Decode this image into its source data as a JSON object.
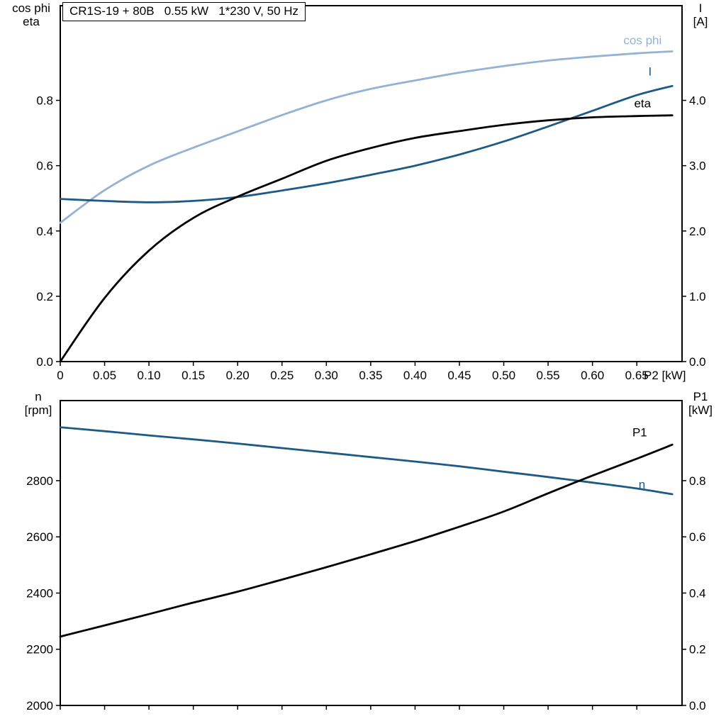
{
  "colors": {
    "light_blue": "#94b2d3",
    "dark_blue": "#1d5a86",
    "black": "#000000",
    "frame": "#000000",
    "background": "#ffffff"
  },
  "chart_data": [
    {
      "id": "top",
      "type": "line",
      "title": "CR1S-19 + 80B   0.55 kW   1*230 V, 50 Hz",
      "grid": false,
      "x_axis": {
        "label": "P2 [kW]",
        "range": [
          0,
          0.701
        ],
        "ticks": [
          {
            "v": 0,
            "label": "0"
          },
          {
            "v": 0.05,
            "label": "0.05"
          },
          {
            "v": 0.1,
            "label": "0.10"
          },
          {
            "v": 0.15,
            "label": "0.15"
          },
          {
            "v": 0.2,
            "label": "0.20"
          },
          {
            "v": 0.25,
            "label": "0.25"
          },
          {
            "v": 0.3,
            "label": "0.30"
          },
          {
            "v": 0.35,
            "label": "0.35"
          },
          {
            "v": 0.4,
            "label": "0.40"
          },
          {
            "v": 0.45,
            "label": "0.45"
          },
          {
            "v": 0.5,
            "label": "0.50"
          },
          {
            "v": 0.55,
            "label": "0.55"
          },
          {
            "v": 0.6,
            "label": "0.60"
          },
          {
            "v": 0.65,
            "label": "0.65"
          }
        ]
      },
      "left_axis": {
        "label_lines": [
          "cos phi",
          "eta"
        ],
        "range": [
          0,
          1.09
        ],
        "ticks": [
          {
            "v": 0.0,
            "label": "0.0"
          },
          {
            "v": 0.2,
            "label": "0.2"
          },
          {
            "v": 0.4,
            "label": "0.4"
          },
          {
            "v": 0.6,
            "label": "0.6"
          },
          {
            "v": 0.8,
            "label": "0.8"
          }
        ]
      },
      "right_axis": {
        "label_lines": [
          "I",
          "[A]"
        ],
        "range": [
          0,
          5.45
        ],
        "ticks": [
          {
            "v": 0.0,
            "label": "0.0"
          },
          {
            "v": 1.0,
            "label": "1.0"
          },
          {
            "v": 2.0,
            "label": "2.0"
          },
          {
            "v": 3.0,
            "label": "3.0"
          },
          {
            "v": 4.0,
            "label": "4.0"
          }
        ]
      },
      "series": [
        {
          "name": "cos phi",
          "axis": "left",
          "color": "light_blue",
          "label_xy": [
            0.635,
            0.972
          ],
          "x": [
            0,
            0.05,
            0.1,
            0.15,
            0.2,
            0.25,
            0.3,
            0.35,
            0.4,
            0.45,
            0.5,
            0.55,
            0.6,
            0.65,
            0.69
          ],
          "y": [
            0.425,
            0.525,
            0.6,
            0.655,
            0.705,
            0.755,
            0.8,
            0.835,
            0.861,
            0.885,
            0.905,
            0.922,
            0.934,
            0.944,
            0.95
          ]
        },
        {
          "name": "I",
          "axis": "right",
          "color": "dark_blue",
          "label_xy": [
            0.663,
            4.38
          ],
          "x": [
            0,
            0.05,
            0.1,
            0.15,
            0.2,
            0.25,
            0.3,
            0.35,
            0.4,
            0.45,
            0.5,
            0.55,
            0.6,
            0.65,
            0.69
          ],
          "y": [
            2.49,
            2.46,
            2.44,
            2.46,
            2.52,
            2.62,
            2.73,
            2.86,
            3.0,
            3.17,
            3.37,
            3.6,
            3.84,
            4.08,
            4.22
          ]
        },
        {
          "name": "eta",
          "axis": "left",
          "color": "black",
          "label_xy": [
            0.647,
            0.778
          ],
          "x": [
            0,
            0.05,
            0.1,
            0.15,
            0.2,
            0.25,
            0.3,
            0.35,
            0.4,
            0.45,
            0.5,
            0.55,
            0.6,
            0.65,
            0.69
          ],
          "y": [
            0,
            0.195,
            0.34,
            0.44,
            0.505,
            0.56,
            0.615,
            0.654,
            0.685,
            0.706,
            0.725,
            0.739,
            0.748,
            0.752,
            0.754
          ]
        }
      ]
    },
    {
      "id": "bottom",
      "type": "line",
      "title": "",
      "grid": false,
      "x_axis": {
        "label": "",
        "range": [
          0,
          0.701
        ],
        "ticks": [
          {
            "v": 0,
            "label": ""
          },
          {
            "v": 0.05,
            "label": ""
          },
          {
            "v": 0.1,
            "label": ""
          },
          {
            "v": 0.15,
            "label": ""
          },
          {
            "v": 0.2,
            "label": ""
          },
          {
            "v": 0.25,
            "label": ""
          },
          {
            "v": 0.3,
            "label": ""
          },
          {
            "v": 0.35,
            "label": ""
          },
          {
            "v": 0.4,
            "label": ""
          },
          {
            "v": 0.45,
            "label": ""
          },
          {
            "v": 0.5,
            "label": ""
          },
          {
            "v": 0.55,
            "label": ""
          },
          {
            "v": 0.6,
            "label": ""
          },
          {
            "v": 0.65,
            "label": ""
          }
        ]
      },
      "left_axis": {
        "label_lines": [
          "n",
          "[rpm]"
        ],
        "range": [
          2000,
          3085
        ],
        "ticks": [
          {
            "v": 2000,
            "label": "2000"
          },
          {
            "v": 2200,
            "label": "2200"
          },
          {
            "v": 2400,
            "label": "2400"
          },
          {
            "v": 2600,
            "label": "2600"
          },
          {
            "v": 2800,
            "label": "2800"
          }
        ]
      },
      "right_axis": {
        "label_lines": [
          "P1",
          "[kW]"
        ],
        "range": [
          0,
          1.085
        ],
        "ticks": [
          {
            "v": 0.0,
            "label": "0.0"
          },
          {
            "v": 0.2,
            "label": "0.2"
          },
          {
            "v": 0.4,
            "label": "0.4"
          },
          {
            "v": 0.6,
            "label": "0.6"
          },
          {
            "v": 0.8,
            "label": "0.8"
          }
        ]
      },
      "series": [
        {
          "name": "n",
          "axis": "left",
          "color": "dark_blue",
          "label_xy": [
            0.652,
            2772
          ],
          "x": [
            0,
            0.05,
            0.1,
            0.15,
            0.2,
            0.25,
            0.3,
            0.35,
            0.4,
            0.45,
            0.5,
            0.55,
            0.6,
            0.65,
            0.69
          ],
          "y": [
            2990,
            2976,
            2961,
            2947,
            2932,
            2916,
            2900,
            2884,
            2868,
            2851,
            2832,
            2813,
            2793,
            2772,
            2752
          ]
        },
        {
          "name": "P1",
          "axis": "right",
          "color": "black",
          "label_xy": [
            0.645,
            0.958
          ],
          "x": [
            0,
            0.05,
            0.1,
            0.15,
            0.2,
            0.25,
            0.3,
            0.35,
            0.4,
            0.45,
            0.5,
            0.55,
            0.6,
            0.65,
            0.69
          ],
          "y": [
            0.245,
            0.285,
            0.325,
            0.366,
            0.405,
            0.448,
            0.492,
            0.538,
            0.585,
            0.636,
            0.69,
            0.755,
            0.818,
            0.878,
            0.928
          ]
        }
      ]
    }
  ]
}
